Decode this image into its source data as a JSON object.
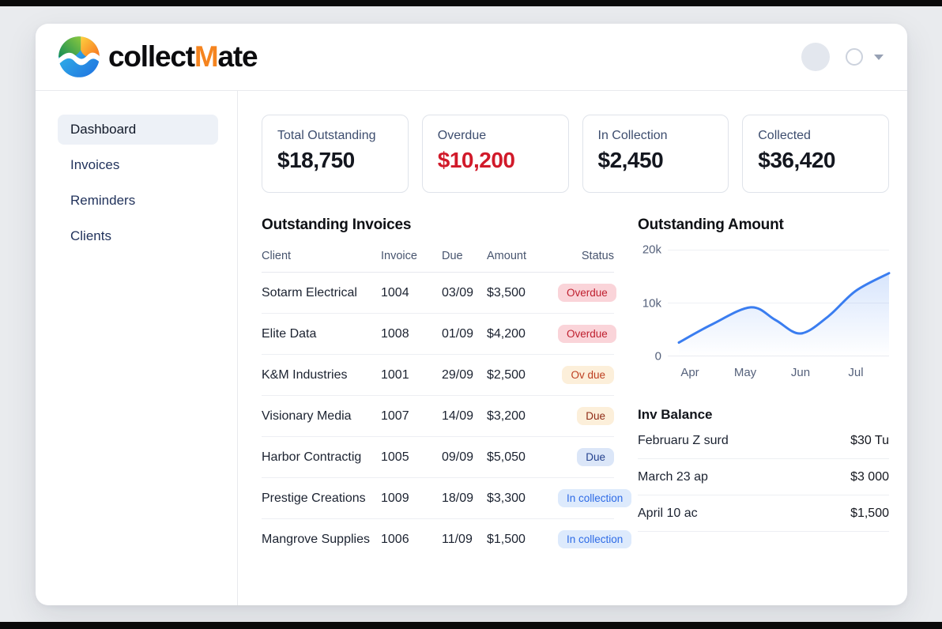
{
  "header": {
    "logo": {
      "text_before": "collect",
      "text_accent": "M",
      "text_after": "ate",
      "accent_color": "#f5841f"
    }
  },
  "sidebar": {
    "items": [
      {
        "label": "Dashboard",
        "active": true
      },
      {
        "label": "Invoices",
        "active": false
      },
      {
        "label": "Reminders",
        "active": false
      },
      {
        "label": "Clients",
        "active": false
      }
    ]
  },
  "stats": [
    {
      "label": "Total Outstanding",
      "value": "$18,750",
      "value_color": "#14171f"
    },
    {
      "label": "Overdue",
      "value": "$10,200",
      "value_color": "#d11a2a"
    },
    {
      "label": "In Collection",
      "value": "$2,450",
      "value_color": "#14171f"
    },
    {
      "label": "Collected",
      "value": "$36,420",
      "value_color": "#14171f"
    }
  ],
  "invoices": {
    "title": "Outstanding Invoices",
    "columns": [
      "Client",
      "Invoice",
      "Due",
      "Amount",
      "Status"
    ],
    "rows": [
      {
        "client": "Sotarm Electrical",
        "invoice": "1004",
        "due": "03/09",
        "amount": "$3,500",
        "status": "Overdue",
        "variant": "overdue"
      },
      {
        "client": "Elite Data",
        "invoice": "1008",
        "due": "01/09",
        "amount": "$4,200",
        "status": "Overdue",
        "variant": "overdue"
      },
      {
        "client": "K&M Industries",
        "invoice": "1001",
        "due": "29/09",
        "amount": "$2,500",
        "status": "Ov due",
        "variant": "ovdue"
      },
      {
        "client": "Visionary Media",
        "invoice": "1007",
        "due": "14/09",
        "amount": "$3,200",
        "status": "Due",
        "variant": "due-warm"
      },
      {
        "client": "Harbor Contractig",
        "invoice": "1005",
        "due": "09/09",
        "amount": "$5,050",
        "status": "Due",
        "variant": "due-blue"
      },
      {
        "client": "Prestige Creations",
        "invoice": "1009",
        "due": "18/09",
        "amount": "$3,300",
        "status": "In collection",
        "variant": "collection"
      },
      {
        "client": "Mangrove Supplies",
        "invoice": "1006",
        "due": "11/09",
        "amount": "$1,500",
        "status": "In collection",
        "variant": "collection"
      }
    ]
  },
  "chart_data": {
    "type": "line",
    "title": "Outstanding Amount",
    "x_tick_labels": [
      "Apr",
      "May",
      "Jun",
      "Jul"
    ],
    "x_tick_pos_pct": [
      10,
      35,
      60,
      85
    ],
    "y_tick_labels": [
      "0",
      "10k",
      "20k"
    ],
    "ylim": [
      0,
      20000
    ],
    "x_range_months": [
      -0.4,
      3.6
    ],
    "grid": true,
    "legend": false,
    "area_fill": true,
    "line_color": "#3a7df0",
    "series": [
      {
        "name": "Outstanding Amount",
        "points": [
          {
            "x": -0.2,
            "y": 2600
          },
          {
            "x": 0.4,
            "y": 6000
          },
          {
            "x": 1.1,
            "y": 9200
          },
          {
            "x": 1.55,
            "y": 6800
          },
          {
            "x": 2.0,
            "y": 4300
          },
          {
            "x": 2.5,
            "y": 7500
          },
          {
            "x": 3.0,
            "y": 12300
          },
          {
            "x": 3.6,
            "y": 15600
          }
        ]
      }
    ]
  },
  "inv_balance": {
    "title": "Inv Balance",
    "rows": [
      {
        "label": "Februaru Z surd",
        "amount": "$30 Tu"
      },
      {
        "label": "March 23 ap",
        "amount": "$3 000"
      },
      {
        "label": "April 10 ac",
        "amount": "$1,500"
      }
    ]
  }
}
